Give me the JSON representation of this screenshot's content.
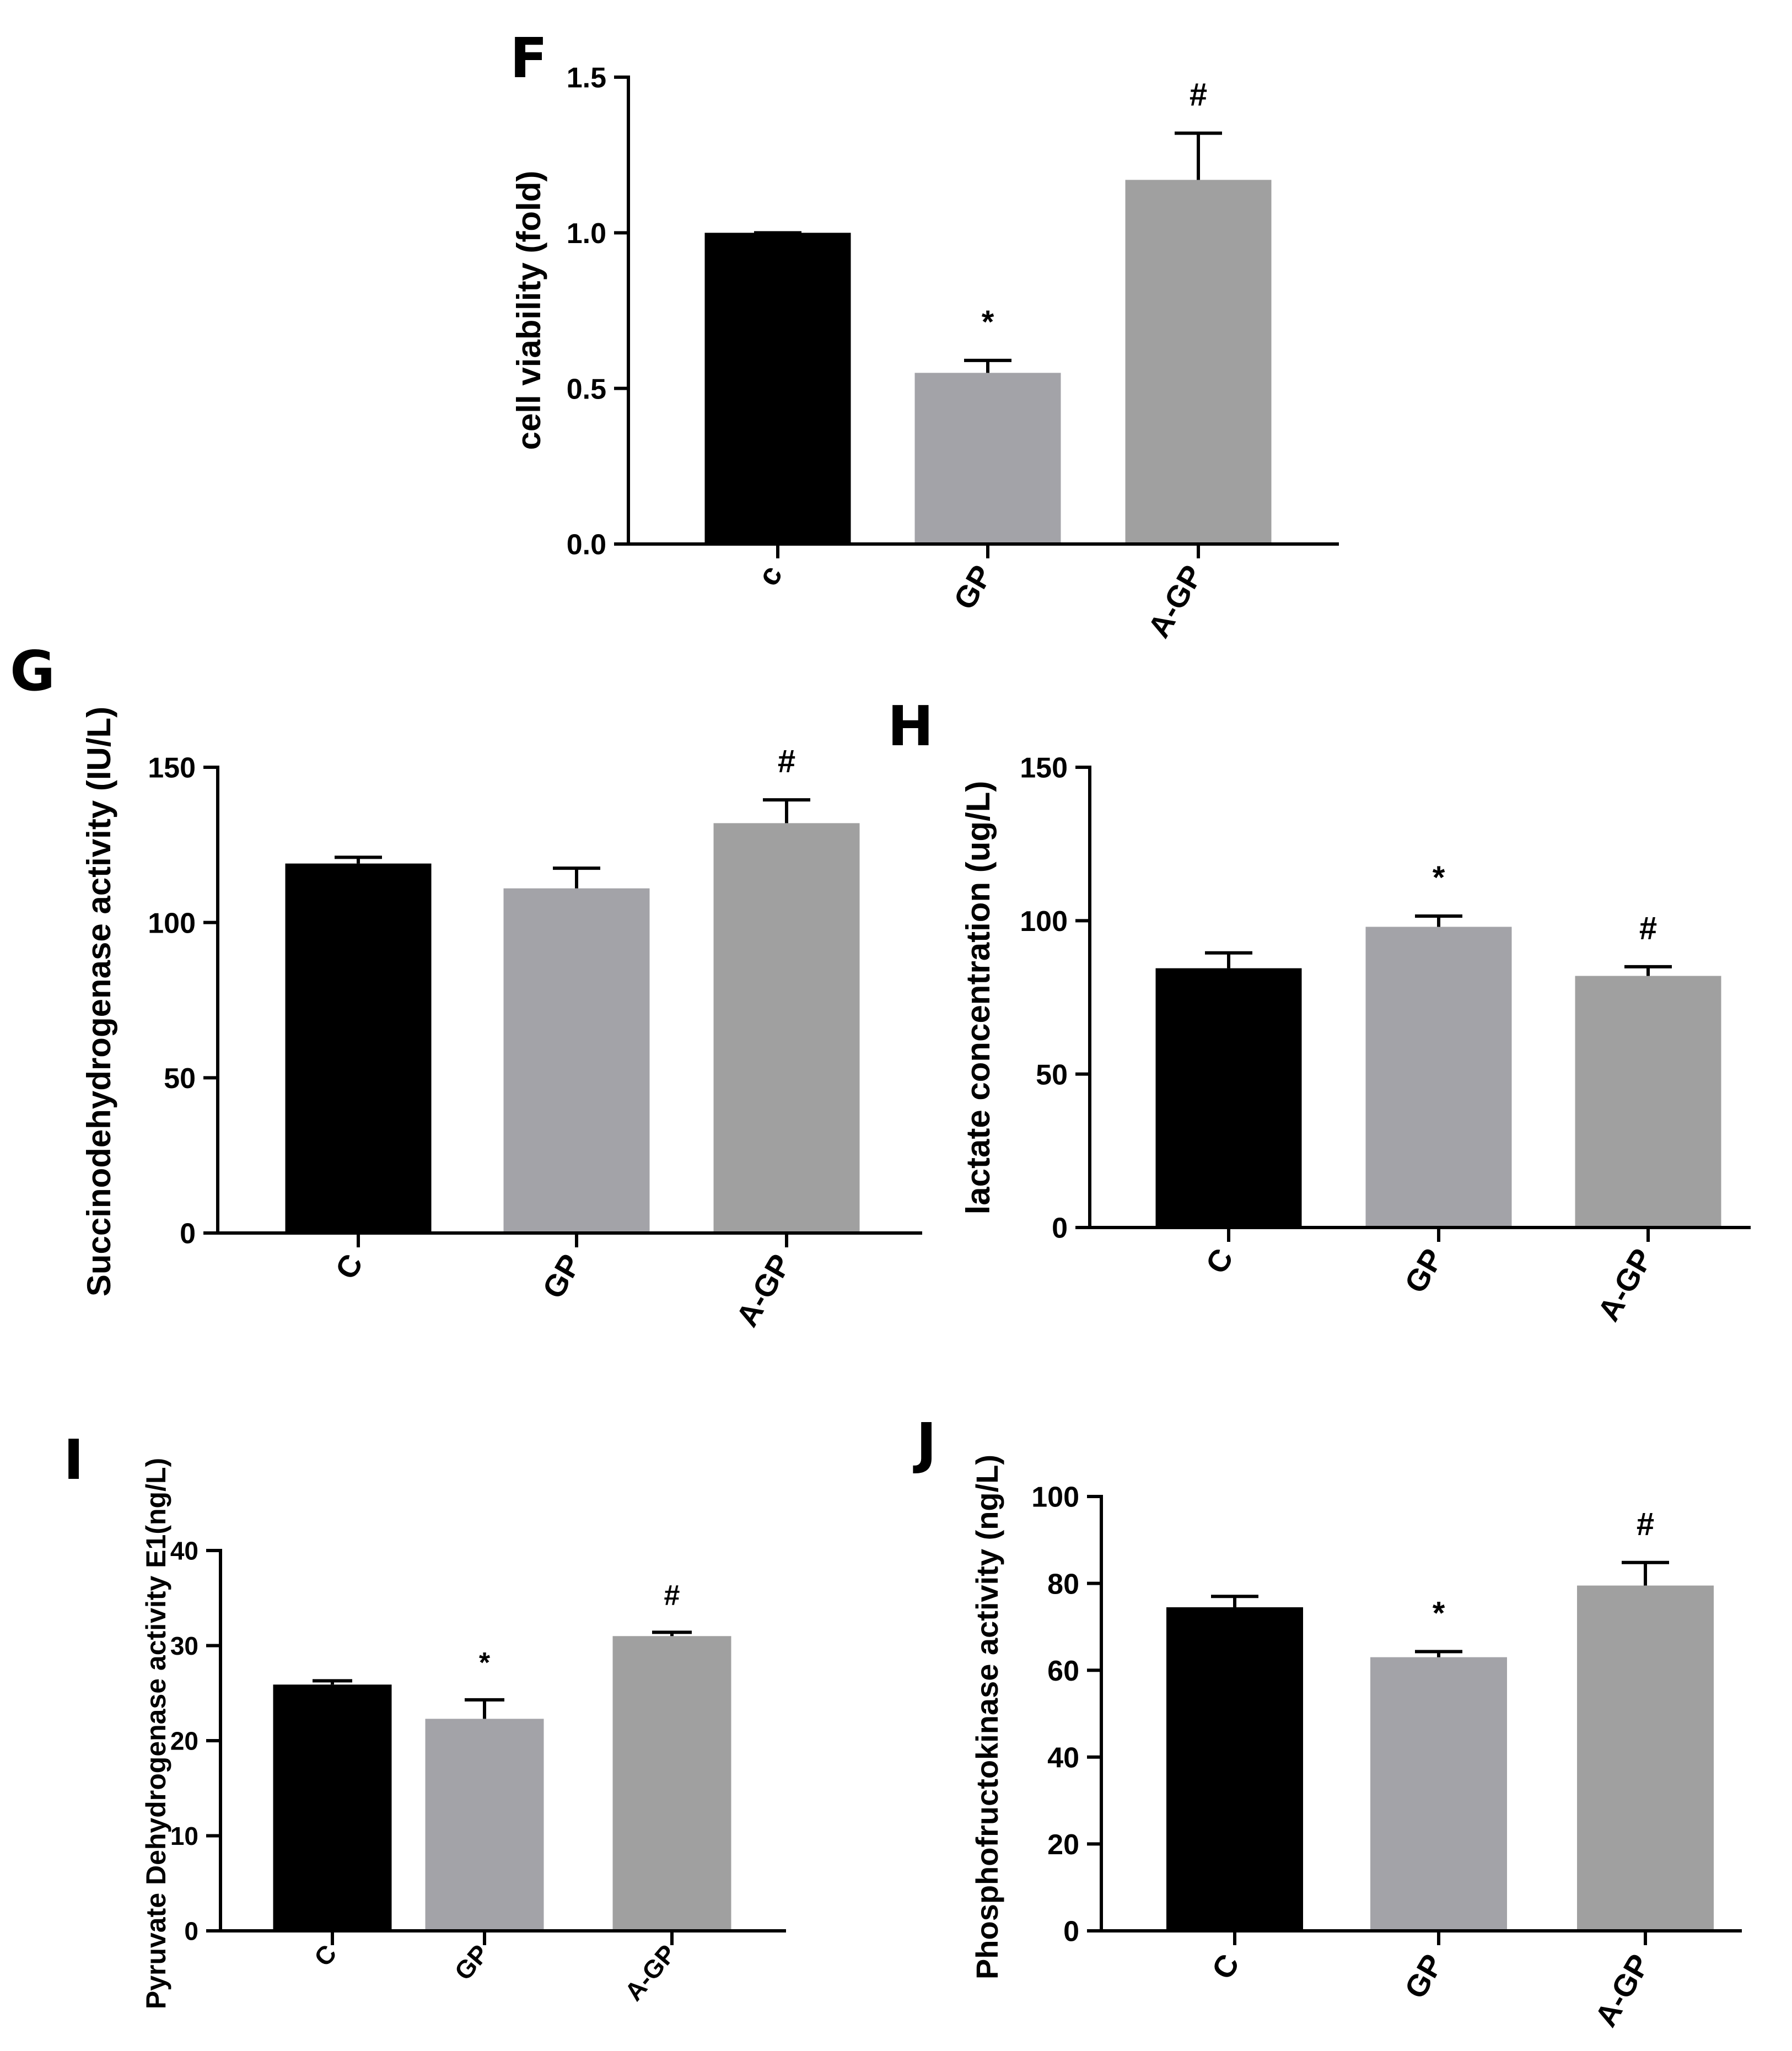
{
  "colors": {
    "axis": "#000000",
    "bar_c": "#000000",
    "bar_gp": "#a3a3a8",
    "bar_agp": "#a0a0a0"
  },
  "chart_data": [
    {
      "panel": "F",
      "type": "bar",
      "categories": [
        "c",
        "GP",
        "A-GP"
      ],
      "values": [
        1.0,
        0.55,
        1.17
      ],
      "errors": [
        0.0,
        0.04,
        0.15
      ],
      "annotations": [
        "",
        "*",
        "#"
      ],
      "ylabel": "cell viability (fold)",
      "xlabel": "",
      "ylim": [
        0,
        1.5
      ],
      "yticks": [
        0.0,
        0.5,
        1.0,
        1.5
      ],
      "ytick_labels": [
        "0.0",
        "0.5",
        "1.0",
        "1.5"
      ]
    },
    {
      "panel": "G",
      "type": "bar",
      "categories": [
        "C",
        "GP",
        "A-GP"
      ],
      "values": [
        119,
        111,
        132
      ],
      "errors": [
        2,
        6.5,
        7.5
      ],
      "annotations": [
        "",
        "",
        "#"
      ],
      "ylabel": "Succinodehydrogenase activity (IU/L)",
      "xlabel": "",
      "ylim": [
        0,
        150
      ],
      "yticks": [
        0,
        50,
        100,
        150
      ],
      "ytick_labels": [
        "0",
        "50",
        "100",
        "150"
      ]
    },
    {
      "panel": "H",
      "type": "bar",
      "categories": [
        "C",
        "GP",
        "A-GP"
      ],
      "values": [
        84.5,
        98,
        82
      ],
      "errors": [
        5,
        3.5,
        3
      ],
      "annotations": [
        "",
        "*",
        "#"
      ],
      "ylabel": "lactate concentration (ug/L)",
      "xlabel": "",
      "ylim": [
        0,
        150
      ],
      "yticks": [
        0,
        50,
        100,
        150
      ],
      "ytick_labels": [
        "0",
        "50",
        "100",
        "150"
      ]
    },
    {
      "panel": "I",
      "type": "bar",
      "categories": [
        "C",
        "GP",
        "A-GP"
      ],
      "values": [
        25.9,
        22.3,
        31
      ],
      "errors": [
        0.4,
        2.0,
        0.4
      ],
      "annotations": [
        "",
        "*",
        "#"
      ],
      "ylabel": "Pyruvate Dehydrogenase activity E1(ng/L)",
      "xlabel": "",
      "ylim": [
        0,
        40
      ],
      "yticks": [
        0,
        10,
        20,
        30,
        40
      ],
      "ytick_labels": [
        "0",
        "10",
        "20",
        "30",
        "40"
      ]
    },
    {
      "panel": "J",
      "type": "bar",
      "categories": [
        "C",
        "GP",
        "A-GP"
      ],
      "values": [
        74.5,
        63,
        79.5
      ],
      "errors": [
        2.5,
        1.3,
        5.3
      ],
      "annotations": [
        "",
        "*",
        "#"
      ],
      "ylabel": "Phosphofructokinase activity (ng/L)",
      "xlabel": "",
      "ylim": [
        0,
        100
      ],
      "yticks": [
        0,
        20,
        40,
        60,
        80,
        100
      ],
      "ytick_labels": [
        "0",
        "20",
        "40",
        "60",
        "80",
        "100"
      ]
    }
  ]
}
